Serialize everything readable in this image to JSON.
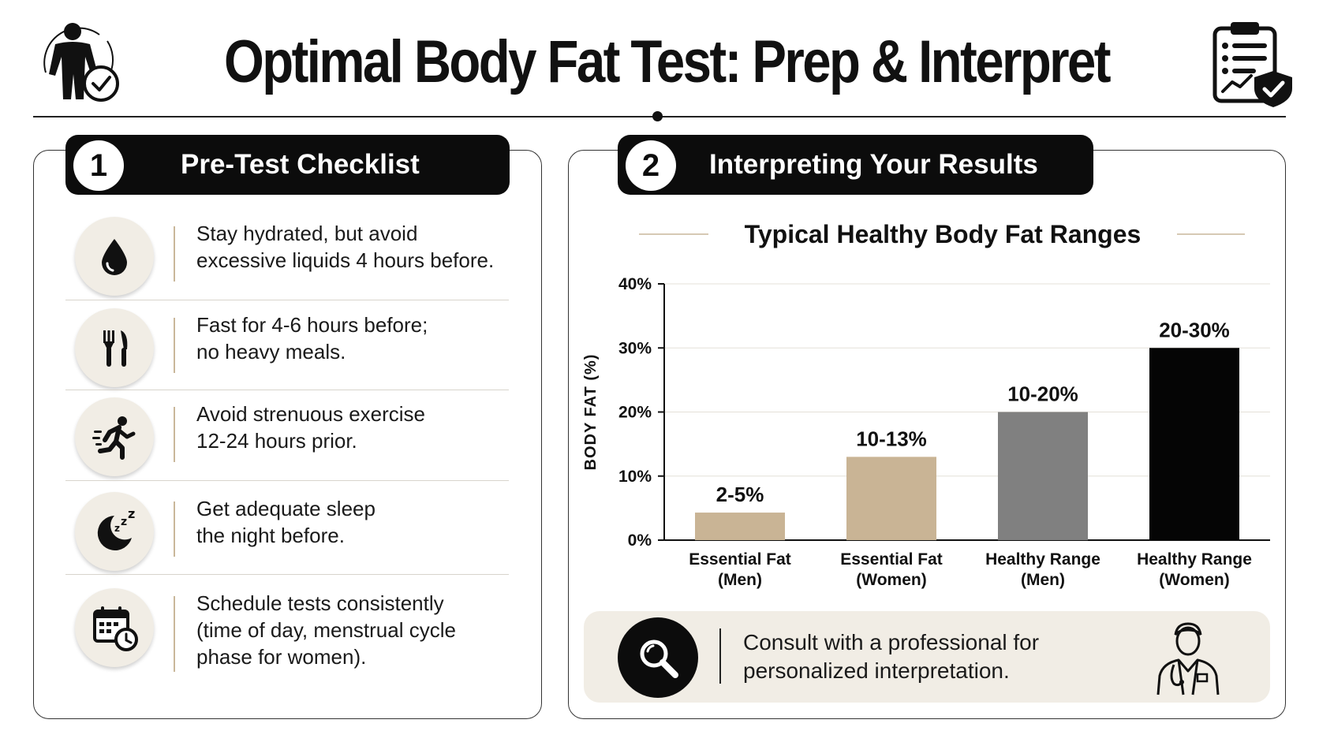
{
  "header": {
    "title": "Optimal Body Fat Test: Prep & Interpret",
    "left_icon": "person-check-icon",
    "right_icon": "clipboard-shield-icon"
  },
  "checklist": {
    "number": "1",
    "title": "Pre-Test Checklist",
    "items": [
      {
        "icon": "water-drop-icon",
        "text_line1": "Stay hydrated, but avoid",
        "text_line2": "excessive liquids 4 hours before."
      },
      {
        "icon": "fork-knife-icon",
        "text_line1": "Fast for 4-6 hours before;",
        "text_line2": "no heavy meals."
      },
      {
        "icon": "running-person-icon",
        "text_line1": "Avoid strenuous exercise",
        "text_line2": "12-24 hours prior."
      },
      {
        "icon": "moon-sleep-icon",
        "text_line1": "Get adequate sleep",
        "text_line2": "the night before."
      },
      {
        "icon": "calendar-clock-icon",
        "text_line1": "Schedule tests consistently",
        "text_line2": "(time of day, menstrual cycle",
        "text_line3": "phase for women)."
      }
    ]
  },
  "results": {
    "number": "2",
    "title": "Interpreting Your Results",
    "consult_line1": "Consult with a professional for",
    "consult_line2": "personalized interpretation.",
    "consult_icon": "magnifier-icon",
    "doctor_icon": "doctor-icon"
  },
  "chart_data": {
    "type": "bar",
    "title": "Typical Healthy Body Fat Ranges",
    "ylabel": "BODY FAT (%)",
    "xlabel": "",
    "ylim": [
      0,
      40
    ],
    "yticks": [
      0,
      10,
      20,
      30,
      40
    ],
    "ytick_labels": [
      "0%",
      "10%",
      "20%",
      "30%",
      "40%"
    ],
    "grid": true,
    "categories": [
      [
        "Essential Fat",
        "(Men)"
      ],
      [
        "Essential Fat",
        "(Women)"
      ],
      [
        "Healthy Range",
        "(Men)"
      ],
      [
        "Healthy Range",
        "(Women)"
      ]
    ],
    "values": [
      4.3,
      13,
      20,
      30
    ],
    "data_labels": [
      "2-5%",
      "10-13%",
      "10-20%",
      "20-30%"
    ],
    "colors": [
      "#c9b495",
      "#c9b495",
      "#808080",
      "#050505"
    ]
  }
}
